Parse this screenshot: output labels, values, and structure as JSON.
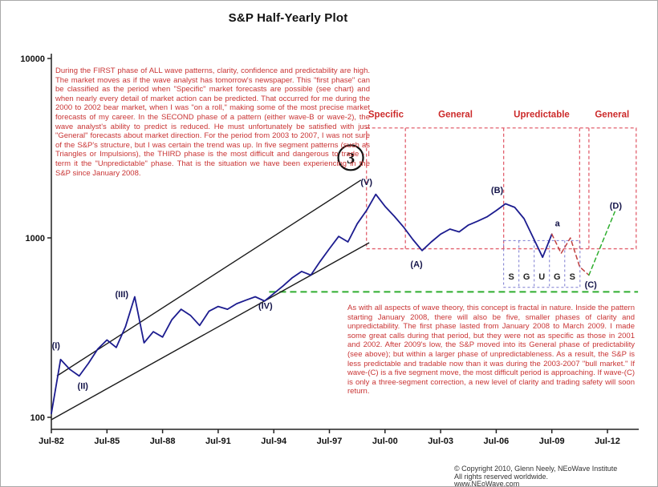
{
  "title": "S&P Half-Yearly Plot",
  "annotations": {
    "first_phase_paragraph": "During the FIRST phase of ALL wave patterns, clarity, confidence and predictability are high. The market moves as if the wave analyst has tomorrow's newspaper. This \"first phase\" can be classified as the period when \"Specific\" market forecasts are possible (see chart) and when nearly every detail of market action can be predicted. That occurred for me during the 2000 to 2002 bear market, when I was \"on a roll,\" making some of the most precise market forecasts of my career. In the SECOND phase of a pattern (either wave-B or wave-2), the wave analyst's ability to predict is reduced. He must unfortunately be satisfied with just \"General\" forecasts about market direction. For the period from 2003 to 2007, I was not sure of the S&P's structure, but I was certain the trend was up. In five segment patterns (such as Triangles or Impulsions), the THIRD phase is the most difficult and dangerous to trade - I term it the \"Unpredictable\" phase. That is the situation we have been experiencing in the S&P since January 2008.",
    "fractal_paragraph": "As with all aspects of wave theory, this concept is fractal in nature. Inside the pattern starting January 2008, there will also be five, smaller phases of clarity and unpredictability. The first phase lasted from January 2008 to March 2009. I made some great calls during that period, but they were not as specific as those in 2001 and 2002. After 2009's low, the S&P moved into its General phase of predictability (see above); but within a larger phase of unpredictableness. As a result, the S&P is less predictable and tradable now than it was during the 2003-2007 \"bull market.\" If wave-(C) is a five segment move, the most difficult period is approaching. If wave-(C) is only a three-segment correction, a new level of clarity and trading safety will soon return."
  },
  "footer": {
    "copyright_line1": "© Copyright 2010, Glenn Neely, NEoWave Institute",
    "copyright_line2": "All rights reserved worldwide.",
    "copyright_line3": "www.NEoWave.com"
  },
  "colors": {
    "price_line": "#1c1c8f",
    "annotation_red": "#cc2a2a",
    "region_border": "#e2606e",
    "sub_box_border": "#7b7bd0",
    "support_green": "#2fae2f",
    "projection_red": "#c04040",
    "projection_green": "#2fae2f",
    "trend_black": "#1a1a1a",
    "axis_black": "#222222"
  },
  "chart_data": {
    "type": "line",
    "title": "S&P Half-Yearly Plot",
    "y_axis": {
      "scale": "log",
      "ticks": [
        10000,
        1000,
        100
      ],
      "range": [
        100,
        10000
      ]
    },
    "x_axis": {
      "ticks": [
        {
          "label": "Jul-82",
          "year": 1982.5
        },
        {
          "label": "Jul-85",
          "year": 1985.5
        },
        {
          "label": "Jul-88",
          "year": 1988.5
        },
        {
          "label": "Jul-91",
          "year": 1991.5
        },
        {
          "label": "Jul-94",
          "year": 1994.5
        },
        {
          "label": "Jul-97",
          "year": 1997.5
        },
        {
          "label": "Jul-00",
          "year": 2000.5
        },
        {
          "label": "Jul-03",
          "year": 2003.5
        },
        {
          "label": "Jul-06",
          "year": 2006.5
        },
        {
          "label": "Jul-09",
          "year": 2009.5
        },
        {
          "label": "Jul-12",
          "year": 2012.5
        }
      ]
    },
    "series": [
      {
        "name": "sp-half-yearly-price",
        "color_key": "price_line",
        "width": 1.8,
        "dash": null,
        "points": [
          [
            1982.5,
            105
          ],
          [
            1983,
            210
          ],
          [
            1983.5,
            185
          ],
          [
            1984,
            170
          ],
          [
            1984.5,
            200
          ],
          [
            1985,
            240
          ],
          [
            1985.5,
            270
          ],
          [
            1986,
            245
          ],
          [
            1986.5,
            320
          ],
          [
            1987,
            470
          ],
          [
            1987.5,
            260
          ],
          [
            1988,
            300
          ],
          [
            1988.5,
            280
          ],
          [
            1989,
            350
          ],
          [
            1989.5,
            400
          ],
          [
            1990,
            370
          ],
          [
            1990.5,
            325
          ],
          [
            1991,
            390
          ],
          [
            1991.5,
            415
          ],
          [
            1992,
            400
          ],
          [
            1992.5,
            430
          ],
          [
            1993,
            450
          ],
          [
            1993.5,
            470
          ],
          [
            1994,
            445
          ],
          [
            1994.5,
            490
          ],
          [
            1995,
            540
          ],
          [
            1995.5,
            600
          ],
          [
            1996,
            650
          ],
          [
            1996.5,
            620
          ],
          [
            1997,
            740
          ],
          [
            1997.5,
            870
          ],
          [
            1998,
            1020
          ],
          [
            1998.5,
            950
          ],
          [
            1999,
            1200
          ],
          [
            1999.5,
            1420
          ],
          [
            2000,
            1750
          ],
          [
            2000.5,
            1500
          ],
          [
            2001,
            1320
          ],
          [
            2001.5,
            1150
          ],
          [
            2002,
            980
          ],
          [
            2002.5,
            850
          ],
          [
            2003,
            950
          ],
          [
            2003.5,
            1050
          ],
          [
            2004,
            1120
          ],
          [
            2004.5,
            1080
          ],
          [
            2005,
            1180
          ],
          [
            2005.5,
            1240
          ],
          [
            2006,
            1310
          ],
          [
            2006.5,
            1420
          ],
          [
            2007,
            1550
          ],
          [
            2007.5,
            1480
          ],
          [
            2008,
            1280
          ],
          [
            2008.5,
            1000
          ],
          [
            2009,
            780
          ],
          [
            2009.5,
            1050
          ]
        ]
      },
      {
        "name": "projected-wave-c-path",
        "color_key": "projection_red",
        "width": 1.5,
        "dash": "5,4",
        "points": [
          [
            2009.5,
            1050
          ],
          [
            2010,
            820
          ],
          [
            2010.5,
            1000
          ],
          [
            2011,
            690
          ],
          [
            2011.5,
            620
          ]
        ]
      },
      {
        "name": "projected-wave-d-path",
        "color_key": "projection_green",
        "width": 1.5,
        "dash": "5,4",
        "points": [
          [
            2011.5,
            620
          ],
          [
            2012.9,
            1400
          ]
        ]
      }
    ],
    "trend_lines": [
      {
        "name": "upper-channel-line",
        "points": [
          [
            1982.8,
            170
          ],
          [
            1999.2,
            2100
          ]
        ]
      },
      {
        "name": "lower-channel-line",
        "points": [
          [
            1982.5,
            97
          ],
          [
            1999.65,
            940
          ]
        ]
      }
    ],
    "support_line": {
      "price": 500,
      "year_start": 1994.25,
      "year_end": 2014.15
    },
    "wave_labels": [
      {
        "text": "(I)",
        "year": 1982.75,
        "price": 252
      },
      {
        "text": "(II)",
        "year": 1984.2,
        "price": 150
      },
      {
        "text": "(III)",
        "year": 1986.3,
        "price": 487
      },
      {
        "text": "(IV)",
        "year": 1994.05,
        "price": 420
      },
      {
        "text": "(V)",
        "year": 1999.5,
        "price": 2050
      },
      {
        "text": "(A)",
        "year": 2002.2,
        "price": 715
      },
      {
        "text": "(B)",
        "year": 2006.55,
        "price": 1850
      },
      {
        "text": "a",
        "year": 2009.8,
        "price": 1210
      },
      {
        "text": "(C)",
        "year": 2011.6,
        "price": 550
      },
      {
        "text": "(D)",
        "year": 2012.95,
        "price": 1520
      }
    ],
    "circled_label": {
      "text": "3",
      "year": 1998.65,
      "price": 2800
    },
    "phase_regions": {
      "box": {
        "year_start": 1999.5,
        "year_end": 2014.05,
        "price_top": 4100,
        "price_bottom": 870
      },
      "dividers_years": [
        2001.6,
        2006.9,
        2011.0,
        2011.5
      ],
      "label_price": 4700,
      "labels": [
        {
          "text": "Specific",
          "year": 2000.55
        },
        {
          "text": "General",
          "year": 2004.3
        },
        {
          "text": "Upredictable",
          "year": 2008.95
        },
        {
          "text": "General",
          "year": 2012.75
        }
      ]
    },
    "sub_phases": {
      "box": {
        "year_start": 2006.9,
        "year_end": 2011.02,
        "price_top": 966,
        "price_bottom": 530
      },
      "letters": [
        "S",
        "G",
        "U",
        "G",
        "S"
      ],
      "letter_price": 585
    }
  }
}
